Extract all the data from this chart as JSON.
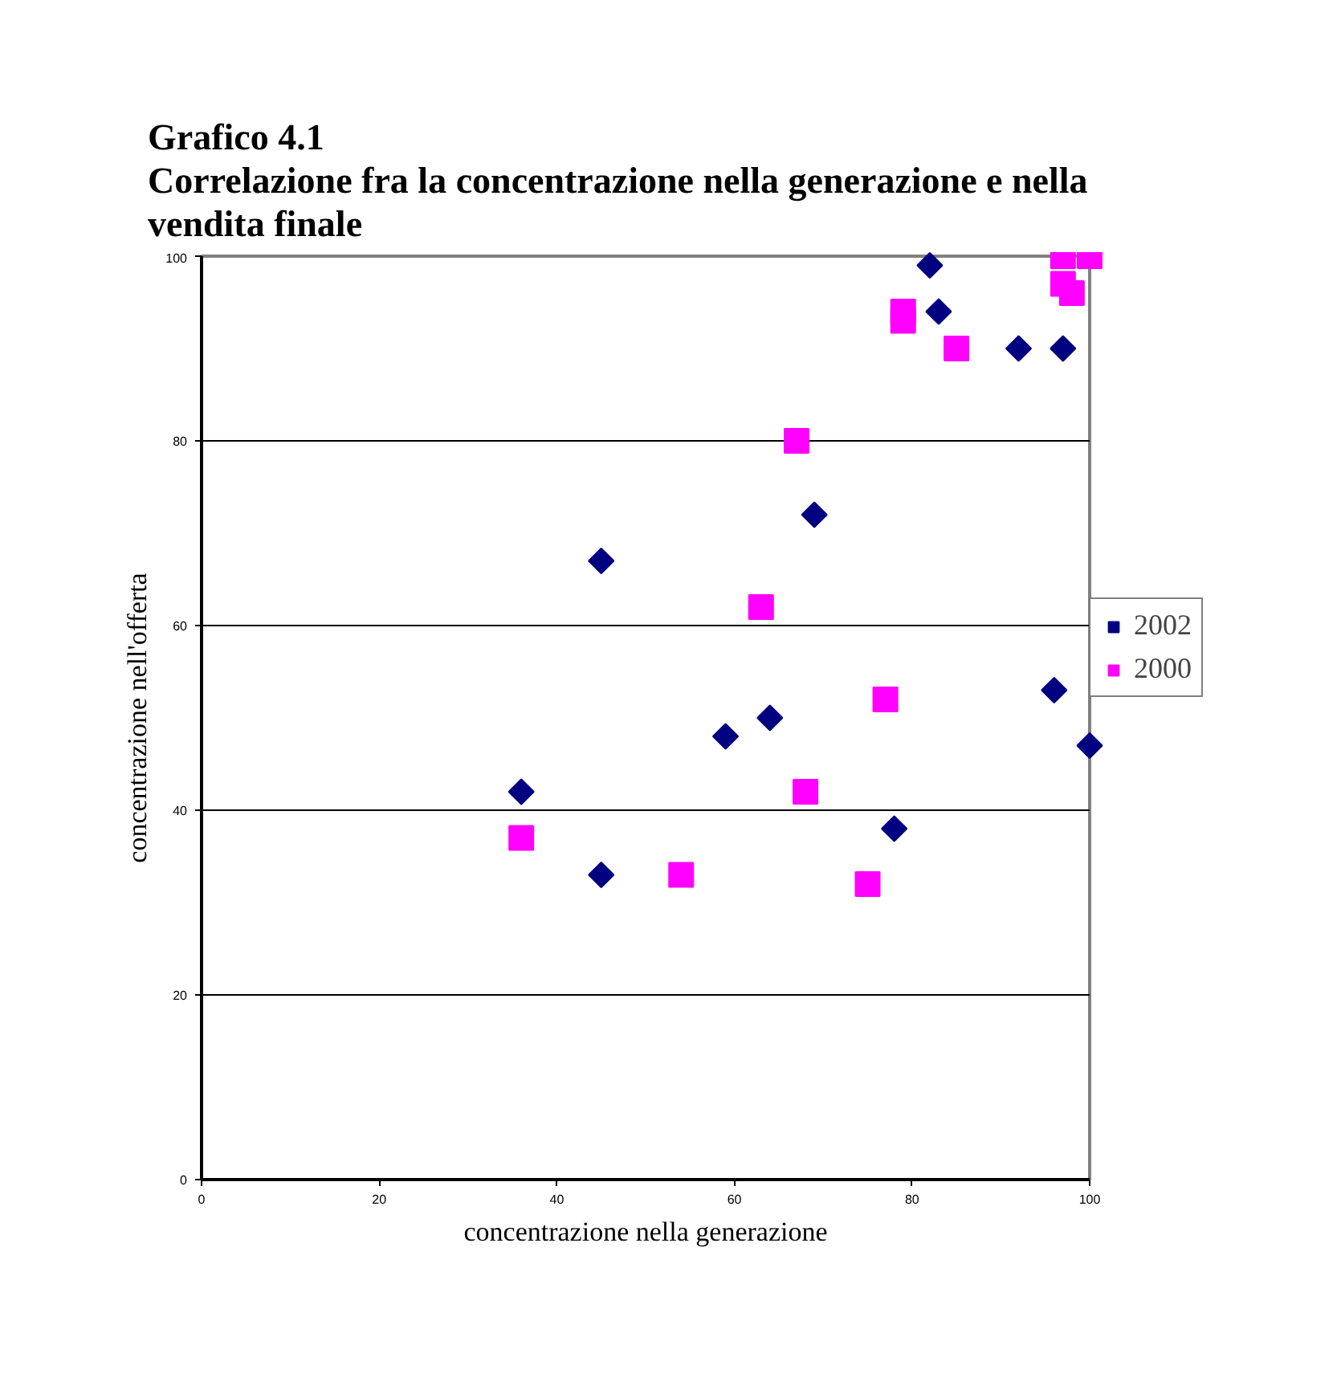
{
  "chart_data": {
    "type": "scatter",
    "title": "Grafico 4.1",
    "subtitle": "Correlazione fra la concentrazione nella generazione e nella vendita finale",
    "xlabel": "concentrazione nella generazione",
    "ylabel": "concentrazione nell'offerta",
    "xlim": [
      0,
      100
    ],
    "ylim": [
      0,
      100
    ],
    "xticks": [
      0,
      20,
      40,
      60,
      80,
      100
    ],
    "yticks": [
      0,
      20,
      40,
      60,
      80,
      100
    ],
    "grid": "y",
    "legend": "right",
    "series": [
      {
        "name": "2002",
        "color": "#000080",
        "marker": "diamond",
        "x": [
          36,
          45,
          45,
          59,
          64,
          69,
          78,
          82,
          83,
          92,
          96,
          97,
          100
        ],
        "values": [
          42,
          67,
          33,
          48,
          50,
          72,
          38,
          99,
          94,
          90,
          53,
          90,
          47
        ]
      },
      {
        "name": "2000",
        "color": "#ff00ff",
        "marker": "square",
        "x": [
          36,
          54,
          63,
          67,
          68,
          75,
          77,
          79,
          79,
          85,
          97,
          97,
          98,
          100
        ],
        "values": [
          37,
          33,
          62,
          80,
          42,
          32,
          52,
          93,
          94,
          90,
          100,
          97,
          96,
          100
        ]
      }
    ]
  }
}
